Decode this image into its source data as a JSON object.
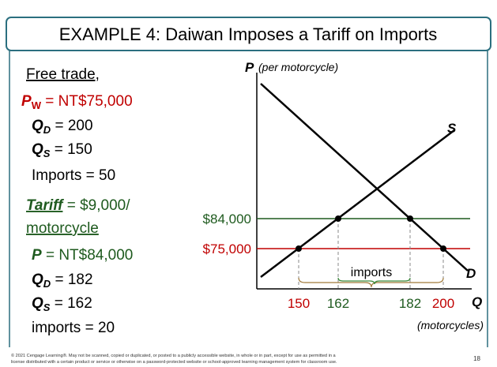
{
  "header": {
    "title": "EXAMPLE 4: Daiwan Imposes a Tariff on Imports"
  },
  "free_trade": {
    "heading": "Free trade,",
    "world_price": {
      "symbol": "P",
      "sub": "W",
      "text": " = NT$75,000"
    },
    "qd": {
      "symbol": "Q",
      "sub": "D",
      "text": " = 200"
    },
    "qs": {
      "symbol": "Q",
      "sub": "S",
      "text": " = 150"
    },
    "imports": "Imports = 50"
  },
  "tariff": {
    "label": "Tariff",
    "text": " = $9,000/",
    "line2": "motorcycle",
    "price": {
      "symbol": "P",
      "text": " = NT$84,000"
    },
    "qd": {
      "symbol": "Q",
      "sub": "D",
      "text": " = 182"
    },
    "qs": {
      "symbol": "Q",
      "sub": "S",
      "text": " = 162"
    },
    "imports": "imports = 20"
  },
  "diagram": {
    "y_axis": "P",
    "y_axis_note": "(per motorcycle)",
    "x_axis": "Q",
    "x_axis_note": "(motorcycles)",
    "supply": "S",
    "demand": "D",
    "price_tariff": "$84,000",
    "price_world": "$75,000",
    "quantities": [
      "150",
      "162",
      "182",
      "200"
    ],
    "brace_label": "imports"
  },
  "footer": {
    "lines": [
      "© 2021 Cengage Learning®. May not be scanned, copied or duplicated, or posted to a publicly accessible website, in whole or in part, except for use as permitted in a",
      "license distributed with a certain product or service or otherwise on a password-protected website or school-approved learning management system for classroom use."
    ],
    "page": "18"
  }
}
